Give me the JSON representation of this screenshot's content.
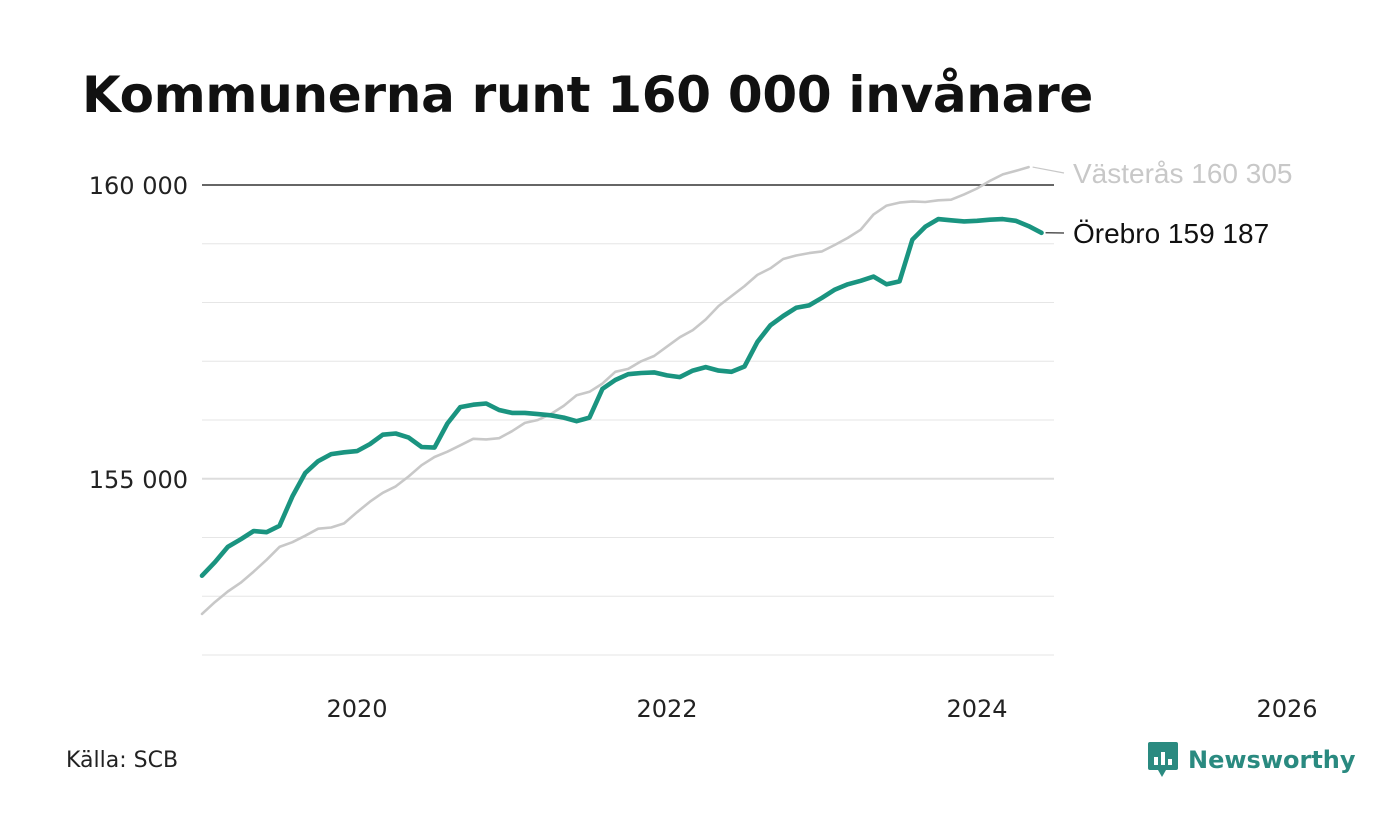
{
  "title": "Kommunerna runt 160 000 invånare",
  "source": "Källa: SCB",
  "brand": "Newsworthy",
  "colors": {
    "orebro": "#1a9480",
    "vasteras": "#c8c8c8",
    "label_vasteras": "#c8c8c8",
    "label_orebro": "#111111",
    "brand": "#2a8a80"
  },
  "chart_data": {
    "type": "line",
    "title": "Kommunerna runt 160 000 invånare",
    "xlabel": "",
    "ylabel": "",
    "xlim": [
      2019.0,
      2026.0
    ],
    "ylim": [
      152000,
      160700
    ],
    "x_ticks": [
      2020,
      2022,
      2024,
      2026
    ],
    "x_tick_labels": [
      "2020",
      "2022",
      "2024",
      "2026"
    ],
    "y_ticks": [
      155000,
      160000
    ],
    "y_tick_labels": [
      "155 000",
      "160 000"
    ],
    "grid": true,
    "series": [
      {
        "name": "Västerås",
        "end_label": "Västerås 160 305",
        "x_start": 2019.0,
        "x_step": 0.08333,
        "values": [
          152700,
          152900,
          153080,
          153230,
          153420,
          153620,
          153840,
          153920,
          154030,
          154150,
          154170,
          154240,
          154430,
          154610,
          154760,
          154870,
          155040,
          155230,
          155370,
          155460,
          155570,
          155680,
          155670,
          155690,
          155810,
          155950,
          156000,
          156100,
          156240,
          156420,
          156480,
          156620,
          156820,
          156870,
          157000,
          157090,
          157250,
          157410,
          157530,
          157710,
          157940,
          158110,
          158280,
          158470,
          158580,
          158740,
          158800,
          158840,
          158870,
          158980,
          159100,
          159240,
          159500,
          159650,
          159700,
          159720,
          159710,
          159740,
          159750,
          159840,
          159940,
          160070,
          160180,
          160240,
          160305
        ]
      },
      {
        "name": "Örebro",
        "end_label": "Örebro 159 187",
        "x_start": 2019.0,
        "x_step": 0.08333,
        "values": [
          153350,
          153580,
          153840,
          153970,
          154110,
          154090,
          154200,
          154700,
          155100,
          155300,
          155420,
          155450,
          155470,
          155590,
          155750,
          155770,
          155700,
          155540,
          155530,
          155940,
          156220,
          156260,
          156280,
          156170,
          156120,
          156120,
          156100,
          156080,
          156040,
          155980,
          156040,
          156530,
          156680,
          156780,
          156800,
          156810,
          156760,
          156730,
          156840,
          156900,
          156840,
          156820,
          156910,
          157330,
          157610,
          157770,
          157910,
          157950,
          158080,
          158220,
          158310,
          158370,
          158440,
          158310,
          158360,
          159070,
          159290,
          159420,
          159400,
          159380,
          159390,
          159410,
          159420,
          159390,
          159300,
          159187
        ]
      }
    ]
  }
}
